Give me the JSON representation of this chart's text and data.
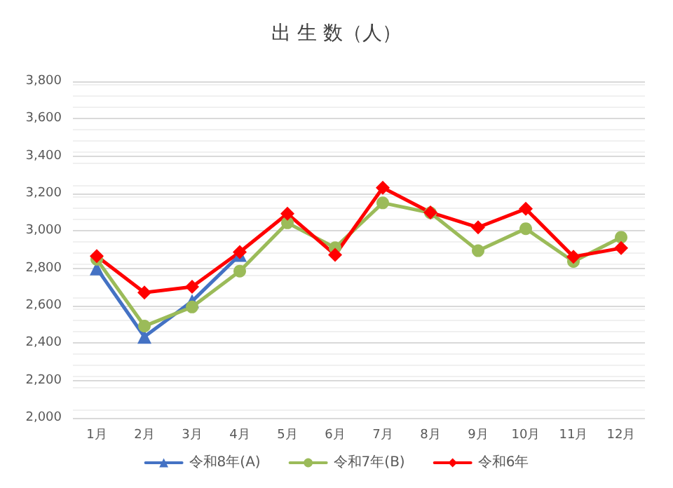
{
  "chart_data": {
    "type": "line",
    "title": "出 生 数（人）",
    "categories": [
      "1月",
      "2月",
      "3月",
      "4月",
      "5月",
      "6月",
      "7月",
      "8月",
      "9月",
      "10月",
      "11月",
      "12月"
    ],
    "ylim": [
      2000,
      3800
    ],
    "yticks": [
      {
        "value": 2000,
        "label": "2,000"
      },
      {
        "value": 2200,
        "label": "2,200"
      },
      {
        "value": 2400,
        "label": "2,400"
      },
      {
        "value": 2600,
        "label": "2,600"
      },
      {
        "value": 2800,
        "label": "2,800"
      },
      {
        "value": 3000,
        "label": "3,000"
      },
      {
        "value": 3200,
        "label": "3,200"
      },
      {
        "value": 3400,
        "label": "3,400"
      },
      {
        "value": 3600,
        "label": "3,600"
      },
      {
        "value": 3800,
        "label": "3,800"
      }
    ],
    "grid": "y",
    "legend": "bottom",
    "series": [
      {
        "name": "令和8年(A)",
        "color": "#4472c4",
        "marker": "triangle",
        "values": [
          2800,
          2434,
          2624,
          2872,
          null,
          null,
          null,
          null,
          null,
          null,
          null,
          null
        ]
      },
      {
        "name": "令和7年(B)",
        "color": "#9bbb59",
        "marker": "circle",
        "values": [
          2848,
          2491,
          2593,
          2785,
          3043,
          2910,
          3150,
          3097,
          2894,
          3012,
          2836,
          2966
        ]
      },
      {
        "name": "令和6年",
        "color": "#ff0000",
        "marker": "diamond",
        "values": [
          2865,
          2670,
          2701,
          2887,
          3092,
          2872,
          3231,
          3099,
          3019,
          3118,
          2862,
          2908
        ]
      }
    ]
  }
}
